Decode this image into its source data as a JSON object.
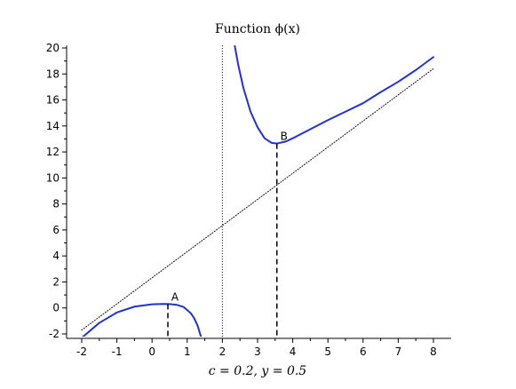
{
  "chart_data": {
    "type": "line",
    "title": "Function ϕ(x)",
    "caption": "c = 0.2,   y = 0.5",
    "xlim": [
      -2.3,
      8.5
    ],
    "ylim": [
      -2.3,
      20.2
    ],
    "x_ticks": [
      -2,
      -1,
      0,
      1,
      2,
      3,
      4,
      5,
      6,
      7,
      8
    ],
    "y_ticks": [
      -2,
      0,
      2,
      4,
      6,
      8,
      10,
      12,
      14,
      16,
      18,
      20
    ],
    "vertical_asymptote_x": 2,
    "series": [
      {
        "points": [
          [
            -2.0,
            -2.3
          ],
          [
            -1.5,
            -1.15
          ],
          [
            -1.0,
            -0.35
          ],
          [
            -0.5,
            0.1
          ],
          [
            0.0,
            0.28
          ],
          [
            0.3,
            0.31
          ],
          [
            0.5,
            0.3
          ],
          [
            0.7,
            0.24
          ],
          [
            0.9,
            0.07
          ],
          [
            1.1,
            -0.4
          ],
          [
            1.2,
            -0.8
          ],
          [
            1.3,
            -1.4
          ],
          [
            1.4,
            -2.3
          ]
        ],
        "color": "#2233cc"
      },
      {
        "points": [
          [
            2.35,
            20.2
          ],
          [
            2.45,
            18.7
          ],
          [
            2.6,
            16.9
          ],
          [
            2.8,
            15.1
          ],
          [
            3.0,
            13.9
          ],
          [
            3.2,
            13.05
          ],
          [
            3.4,
            12.7
          ],
          [
            3.55,
            12.65
          ],
          [
            3.8,
            12.8
          ],
          [
            4.0,
            13.05
          ],
          [
            4.5,
            13.75
          ],
          [
            5.0,
            14.45
          ],
          [
            5.5,
            15.1
          ],
          [
            6.0,
            15.75
          ],
          [
            6.5,
            16.6
          ],
          [
            7.0,
            17.4
          ],
          [
            7.5,
            18.3
          ],
          [
            8.0,
            19.3
          ]
        ],
        "color": "#2233cc"
      },
      {
        "points": [
          [
            -2.0,
            -1.7
          ],
          [
            8.0,
            18.4
          ]
        ],
        "color": "#000000",
        "style": "dotted"
      }
    ],
    "annotations": [
      {
        "label": "A",
        "x": 0.45,
        "y": 0.3
      },
      {
        "label": "B",
        "x": 3.55,
        "y": 12.65
      }
    ]
  }
}
